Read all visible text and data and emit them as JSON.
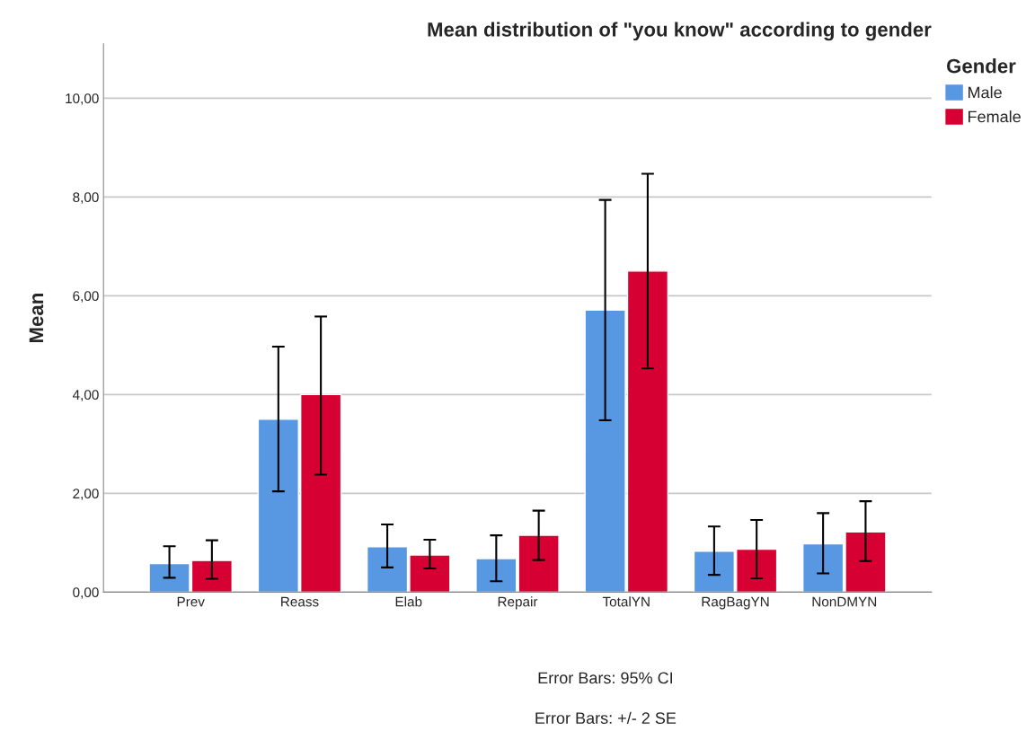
{
  "chart_data": {
    "type": "bar",
    "title": "Mean distribution of \"you know\" according to gender",
    "ylabel": "Mean",
    "legend_title": "Gender",
    "categories": [
      "Prev",
      "Reass",
      "Elab",
      "Repair",
      "TotalYN",
      "RagBagYN",
      "NonDMYN"
    ],
    "series": [
      {
        "name": "Male",
        "color": "#5898e3",
        "values": [
          0.58,
          3.5,
          0.92,
          0.68,
          5.71,
          0.83,
          0.98
        ],
        "errors": [
          [
            0.29,
            0.93
          ],
          [
            2.04,
            4.97
          ],
          [
            0.5,
            1.37
          ],
          [
            0.22,
            1.15
          ],
          [
            3.48,
            7.94
          ],
          [
            0.35,
            1.33
          ],
          [
            0.38,
            1.6
          ]
        ]
      },
      {
        "name": "Female",
        "color": "#d70033",
        "values": [
          0.64,
          4.0,
          0.75,
          1.15,
          6.5,
          0.87,
          1.22
        ],
        "errors": [
          [
            0.27,
            1.05
          ],
          [
            2.38,
            5.58
          ],
          [
            0.48,
            1.06
          ],
          [
            0.65,
            1.65
          ],
          [
            4.53,
            8.47
          ],
          [
            0.28,
            1.46
          ],
          [
            0.63,
            1.84
          ]
        ]
      }
    ],
    "ylim": [
      0,
      11.1
    ],
    "yticks": [
      {
        "value": 0,
        "label": "0,00"
      },
      {
        "value": 2,
        "label": "2,00"
      },
      {
        "value": 4,
        "label": "4,00"
      },
      {
        "value": 6,
        "label": "6,00"
      },
      {
        "value": 8,
        "label": "8,00"
      },
      {
        "value": 10,
        "label": "10,00"
      }
    ],
    "grid": "y",
    "legend": "top right",
    "annotations": [
      "Error Bars: 95% CI",
      "Error Bars: +/- 2 SE"
    ]
  }
}
